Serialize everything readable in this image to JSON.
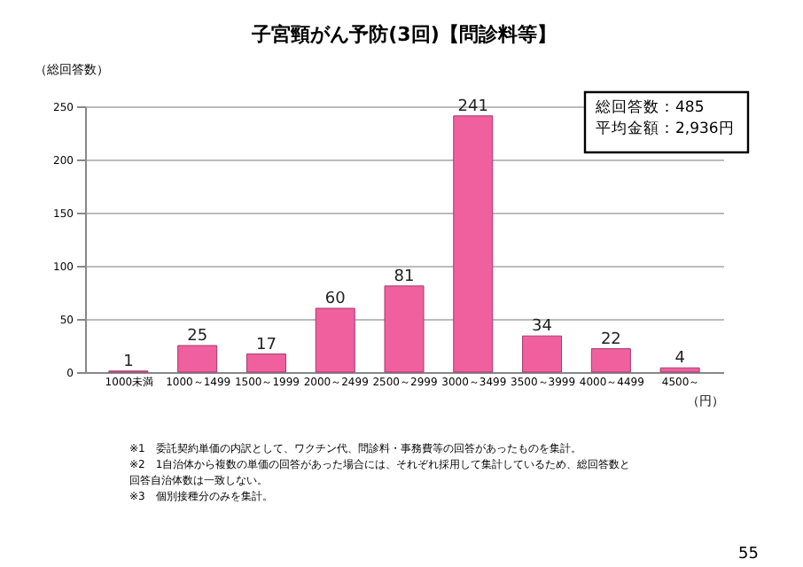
{
  "chart_data": {
    "type": "bar",
    "title": "子宮頸がん予防(3回)【問診料等】",
    "ylabel": "（総回答数）",
    "xlabel": "（円）",
    "categories": [
      "1000未満",
      "1000～1499",
      "1500～1999",
      "2000～2499",
      "2500～2999",
      "3000～3499",
      "3500～3999",
      "4000～4499",
      "4500～"
    ],
    "values": [
      1,
      25,
      17,
      60,
      81,
      241,
      34,
      22,
      4
    ],
    "color": "#f0609e",
    "ylim": [
      0,
      250
    ],
    "yticks": [
      0,
      50,
      100,
      150,
      200,
      250
    ],
    "grid": "y",
    "data_labels": true,
    "annotations": [
      "総回答数：485",
      "平均金額：2,936円",
      "※1　委託契約単価の内訳として、ワクチン代、問診料・事務費等の回答があったものを集計。",
      "※2　1自治体から複数の単価の回答があった場合には、それぞれ採用して集計しているため、総回答数と",
      "　　 回答自治体数は一致しない。",
      "※3　個別接種分のみを集計。",
      "55"
    ]
  }
}
